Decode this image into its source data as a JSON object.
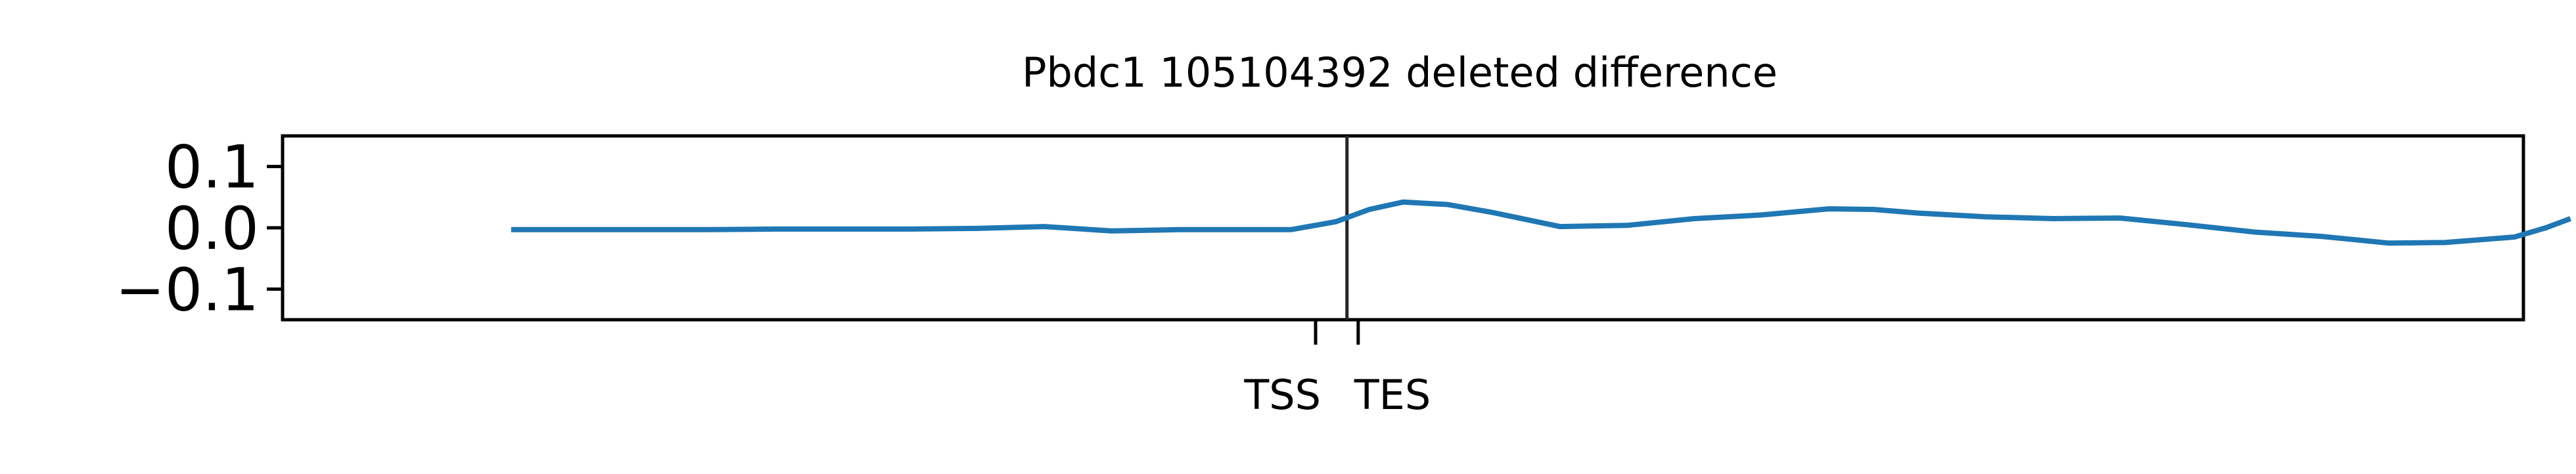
{
  "chart_data": {
    "type": "line",
    "title": "Pbdc1 105104392 deleted difference",
    "xlabel": "",
    "ylabel": "",
    "x_range": [
      0,
      100
    ],
    "ylim": [
      -0.15,
      0.15
    ],
    "yticks": [
      {
        "value": 0.1,
        "label": "0.1"
      },
      {
        "value": 0.0,
        "label": "0.0"
      },
      {
        "value": -0.1,
        "label": "−0.1"
      }
    ],
    "markers": [
      {
        "label": "TSS",
        "x": 46.1
      },
      {
        "label": "TES",
        "x": 48.0
      }
    ],
    "center_line_x": 47.5,
    "grid": false,
    "series": [
      {
        "color": "#1f77b4",
        "x": [
          10.2,
          13,
          16,
          19,
          22,
          25,
          28,
          31,
          34,
          37,
          40,
          42.3,
          45,
          47,
          48.5,
          50,
          52,
          54,
          57,
          60,
          63,
          66,
          69,
          71,
          73,
          76,
          79,
          82,
          85,
          88,
          91,
          94,
          96.5,
          99.6,
          101,
          102.1
        ],
        "values": [
          -0.003,
          -0.003,
          -0.003,
          -0.003,
          -0.002,
          -0.002,
          -0.002,
          -0.001,
          0.002,
          -0.005,
          -0.003,
          -0.003,
          -0.003,
          0.01,
          0.03,
          0.042,
          0.038,
          0.025,
          0.002,
          0.004,
          0.015,
          0.021,
          0.031,
          0.03,
          0.024,
          0.018,
          0.015,
          0.016,
          0.005,
          -0.007,
          -0.014,
          -0.025,
          -0.024,
          -0.015,
          0.0,
          0.015
        ]
      }
    ]
  }
}
